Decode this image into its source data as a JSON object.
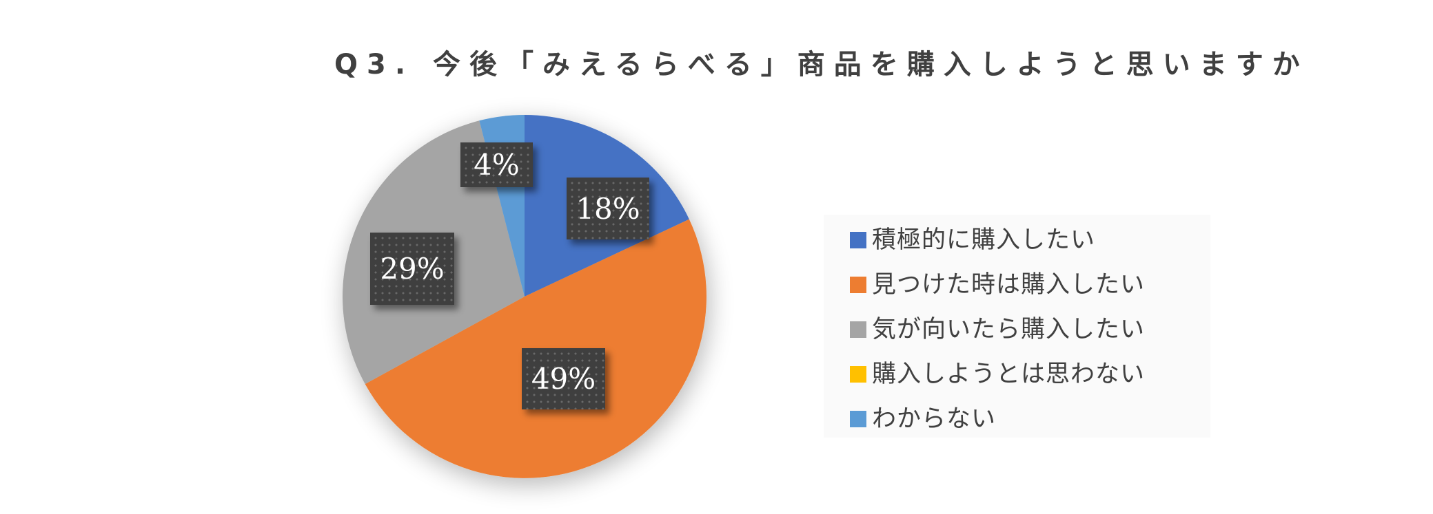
{
  "title": "Q3. 今後「みえるらべる」商品を購入しようと思いますか",
  "chart_data": {
    "type": "pie",
    "title": "Q3. 今後「みえるらべる」商品を購入しようと思いますか",
    "categories": [
      "積極的に購入したい",
      "見つけた時は購入したい",
      "気が向いたら購入したい",
      "購入しようとは思わない",
      "わからない"
    ],
    "values": [
      18,
      49,
      29,
      0,
      4
    ],
    "unit": "%",
    "data_labels": [
      "18%",
      "49%",
      "29%",
      "",
      "4%"
    ],
    "colors": [
      "#4472C4",
      "#ED7D31",
      "#A5A5A5",
      "#FFC000",
      "#5B9BD5"
    ],
    "start_angle": 0,
    "direction": "clockwise",
    "legend_position": "right"
  },
  "labels": {
    "s0": "18%",
    "s1": "49%",
    "s2": "29%",
    "s4": "4%"
  },
  "legend": {
    "items": [
      {
        "label": "積極的に購入したい",
        "color": "#4472C4"
      },
      {
        "label": "見つけた時は購入したい",
        "color": "#ED7D31"
      },
      {
        "label": "気が向いたら購入したい",
        "color": "#A5A5A5"
      },
      {
        "label": "購入しようとは思わない",
        "color": "#FFC000"
      },
      {
        "label": "わからない",
        "color": "#5B9BD5"
      }
    ]
  }
}
